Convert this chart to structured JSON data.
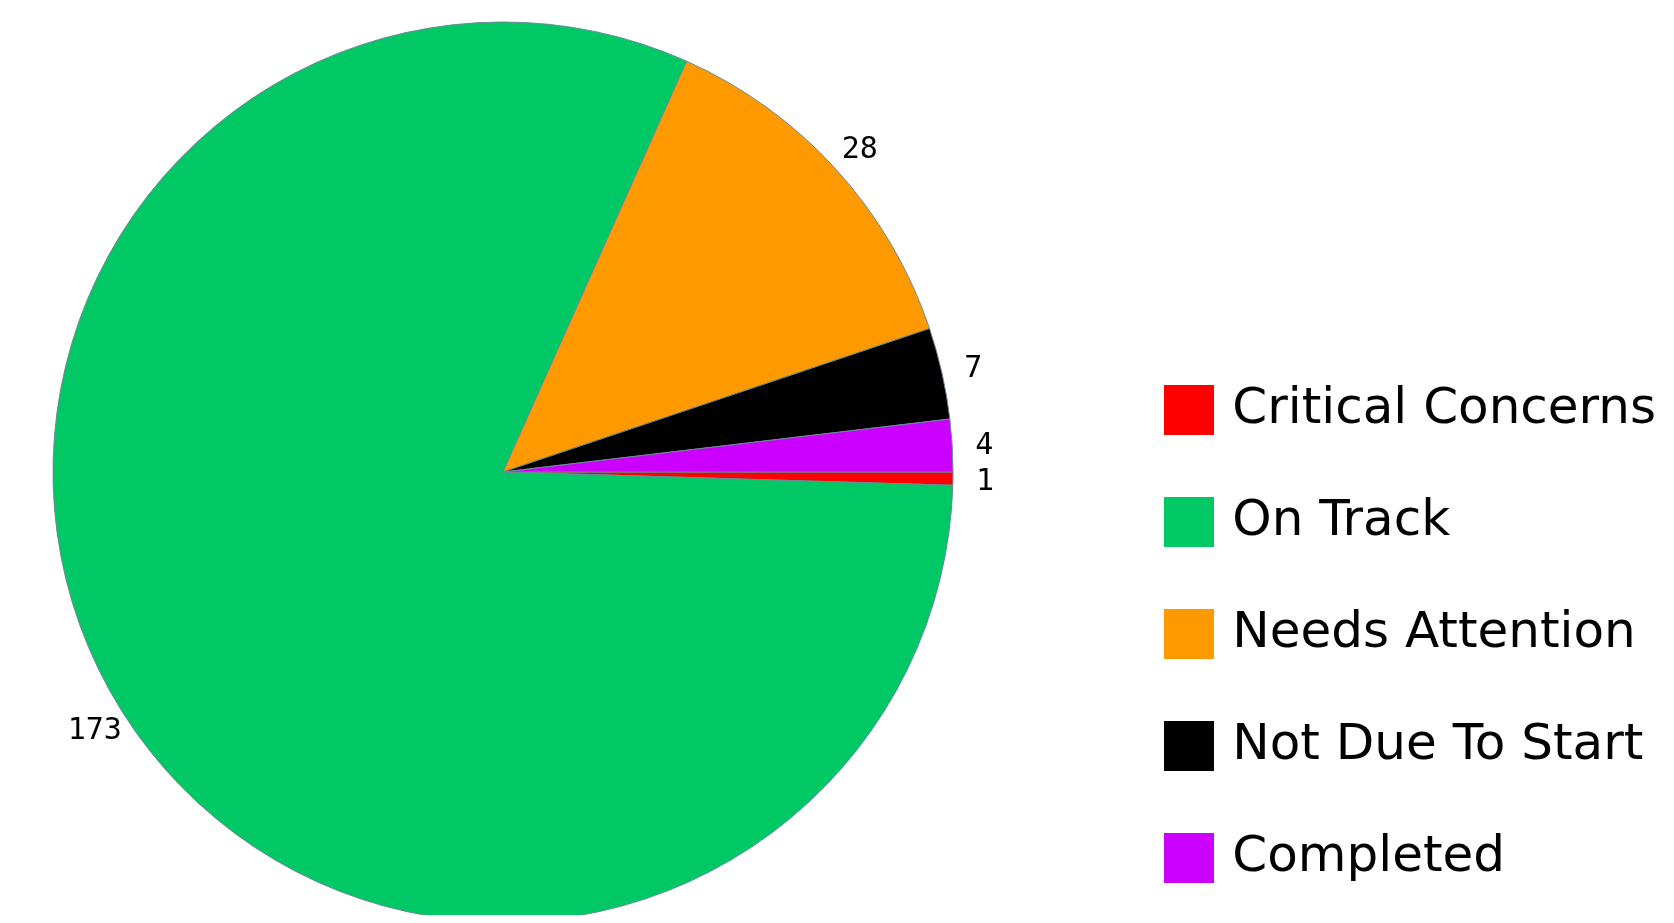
{
  "chart_data": {
    "type": "pie",
    "categories": [
      "Critical Concerns",
      "On Track",
      "Needs Attention",
      "Not Due To Start",
      "Completed"
    ],
    "values": [
      1,
      173,
      28,
      7,
      4
    ],
    "colors": [
      "#ff0000",
      "#00c864",
      "#ff9900",
      "#000000",
      "#cc00ff"
    ],
    "data_labels": true,
    "legend": "bottom right"
  }
}
